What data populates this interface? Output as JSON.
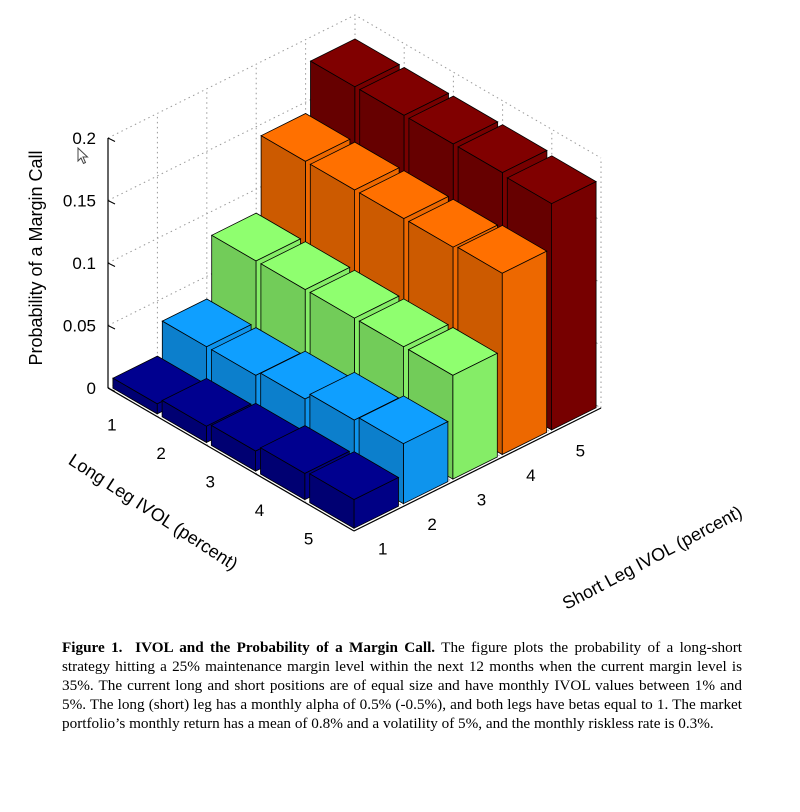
{
  "chart_data": {
    "type": "bar3d",
    "zlabel": "Probability of a Margin Call",
    "xlabel": "Long Leg IVOL (percent)",
    "ylabel": "Short Leg IVOL (percent)",
    "long_leg_ticks": [
      "1",
      "2",
      "3",
      "4",
      "5"
    ],
    "short_leg_ticks": [
      "1",
      "2",
      "3",
      "4",
      "5"
    ],
    "z_ticks": [
      "0",
      "0.05",
      "0.1",
      "0.15",
      "0.2"
    ],
    "zlim": [
      0,
      0.2
    ],
    "grid": true,
    "series_colors": [
      "#00008f",
      "#0f9fff",
      "#8fff6f",
      "#ff7000",
      "#800000"
    ],
    "values": [
      [
        0.008,
        0.034,
        0.083,
        0.143,
        0.183
      ],
      [
        0.013,
        0.034,
        0.083,
        0.143,
        0.183
      ],
      [
        0.016,
        0.038,
        0.083,
        0.143,
        0.183
      ],
      [
        0.021,
        0.044,
        0.083,
        0.143,
        0.183
      ],
      [
        0.023,
        0.048,
        0.083,
        0.145,
        0.181
      ]
    ]
  },
  "caption": {
    "label": "Figure 1.",
    "title": "IVOL and the Probability of a Margin Call.",
    "text": "The figure plots the probability of a long-short strategy hitting a 25% maintenance margin level within the next 12 months when the current margin level is 35%. The current long and short positions are of equal size and have monthly IVOL values between 1% and 5%. The long (short) leg has a monthly alpha of 0.5% (-0.5%), and both legs have betas equal to 1. The market portfolio’s monthly return has a mean of 0.8% and a volatility of 5%, and the monthly riskless rate is 0.3%."
  },
  "cursor_icon": "mouse-pointer-icon"
}
